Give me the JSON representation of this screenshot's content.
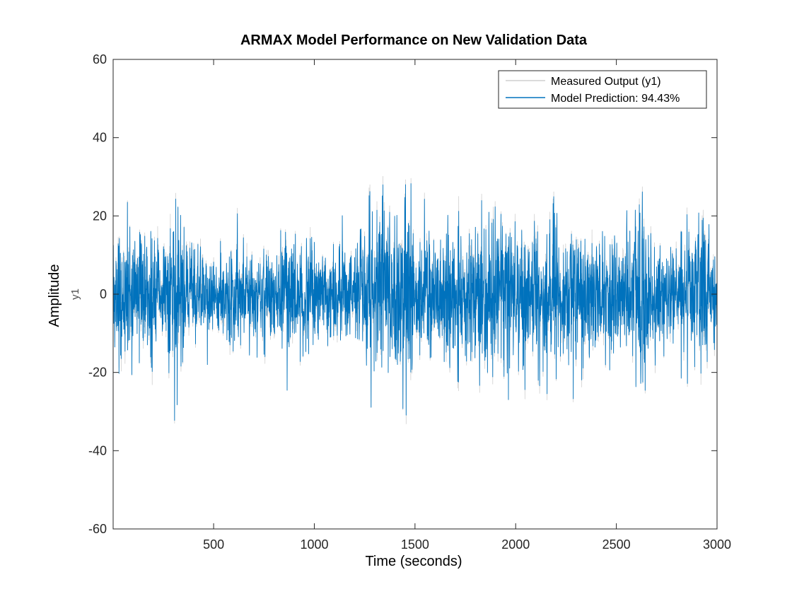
{
  "chart_data": {
    "type": "line",
    "title": "ARMAX Model Performance on New Validation Data",
    "xlabel": "Time (seconds)",
    "ylabel": "Amplitude",
    "ylabel_secondary": "y1",
    "xlim": [
      1,
      3000
    ],
    "ylim": [
      -60,
      60
    ],
    "xticks": [
      500,
      1000,
      1500,
      2000,
      2500,
      3000
    ],
    "yticks": [
      -60,
      -40,
      -20,
      0,
      20,
      40,
      60
    ],
    "grid": false,
    "legend_position": "top-right",
    "n_samples": 3000,
    "envelope": [
      [
        1,
        18
      ],
      [
        100,
        15
      ],
      [
        200,
        12
      ],
      [
        260,
        14
      ],
      [
        330,
        18
      ],
      [
        400,
        10
      ],
      [
        460,
        13
      ],
      [
        520,
        9
      ],
      [
        600,
        12
      ],
      [
        700,
        11
      ],
      [
        800,
        12
      ],
      [
        900,
        14
      ],
      [
        1000,
        10
      ],
      [
        1100,
        12
      ],
      [
        1200,
        11
      ],
      [
        1250,
        18
      ],
      [
        1320,
        22
      ],
      [
        1350,
        26
      ],
      [
        1390,
        18
      ],
      [
        1420,
        20
      ],
      [
        1460,
        26
      ],
      [
        1500,
        14
      ],
      [
        1550,
        16
      ],
      [
        1600,
        13
      ],
      [
        1650,
        18
      ],
      [
        1700,
        17
      ],
      [
        1760,
        15
      ],
      [
        1800,
        14
      ],
      [
        1850,
        17
      ],
      [
        1900,
        20
      ],
      [
        1950,
        16
      ],
      [
        2000,
        15
      ],
      [
        2050,
        17
      ],
      [
        2100,
        18
      ],
      [
        2150,
        15
      ],
      [
        2200,
        17
      ],
      [
        2250,
        14
      ],
      [
        2300,
        15
      ],
      [
        2350,
        16
      ],
      [
        2400,
        15
      ],
      [
        2450,
        14
      ],
      [
        2500,
        17
      ],
      [
        2550,
        15
      ],
      [
        2600,
        19
      ],
      [
        2650,
        18
      ],
      [
        2700,
        11
      ],
      [
        2780,
        10
      ],
      [
        2840,
        14
      ],
      [
        2880,
        18
      ],
      [
        2920,
        17
      ],
      [
        2960,
        14
      ],
      [
        3000,
        15
      ]
    ],
    "series": [
      {
        "name": "Measured Output (y1)",
        "color": "#cfcfcf",
        "amplitude_scale": 1.0
      },
      {
        "name": "Model Prediction: 94.43%",
        "color": "#0072bd",
        "amplitude_scale": 0.96
      }
    ]
  }
}
